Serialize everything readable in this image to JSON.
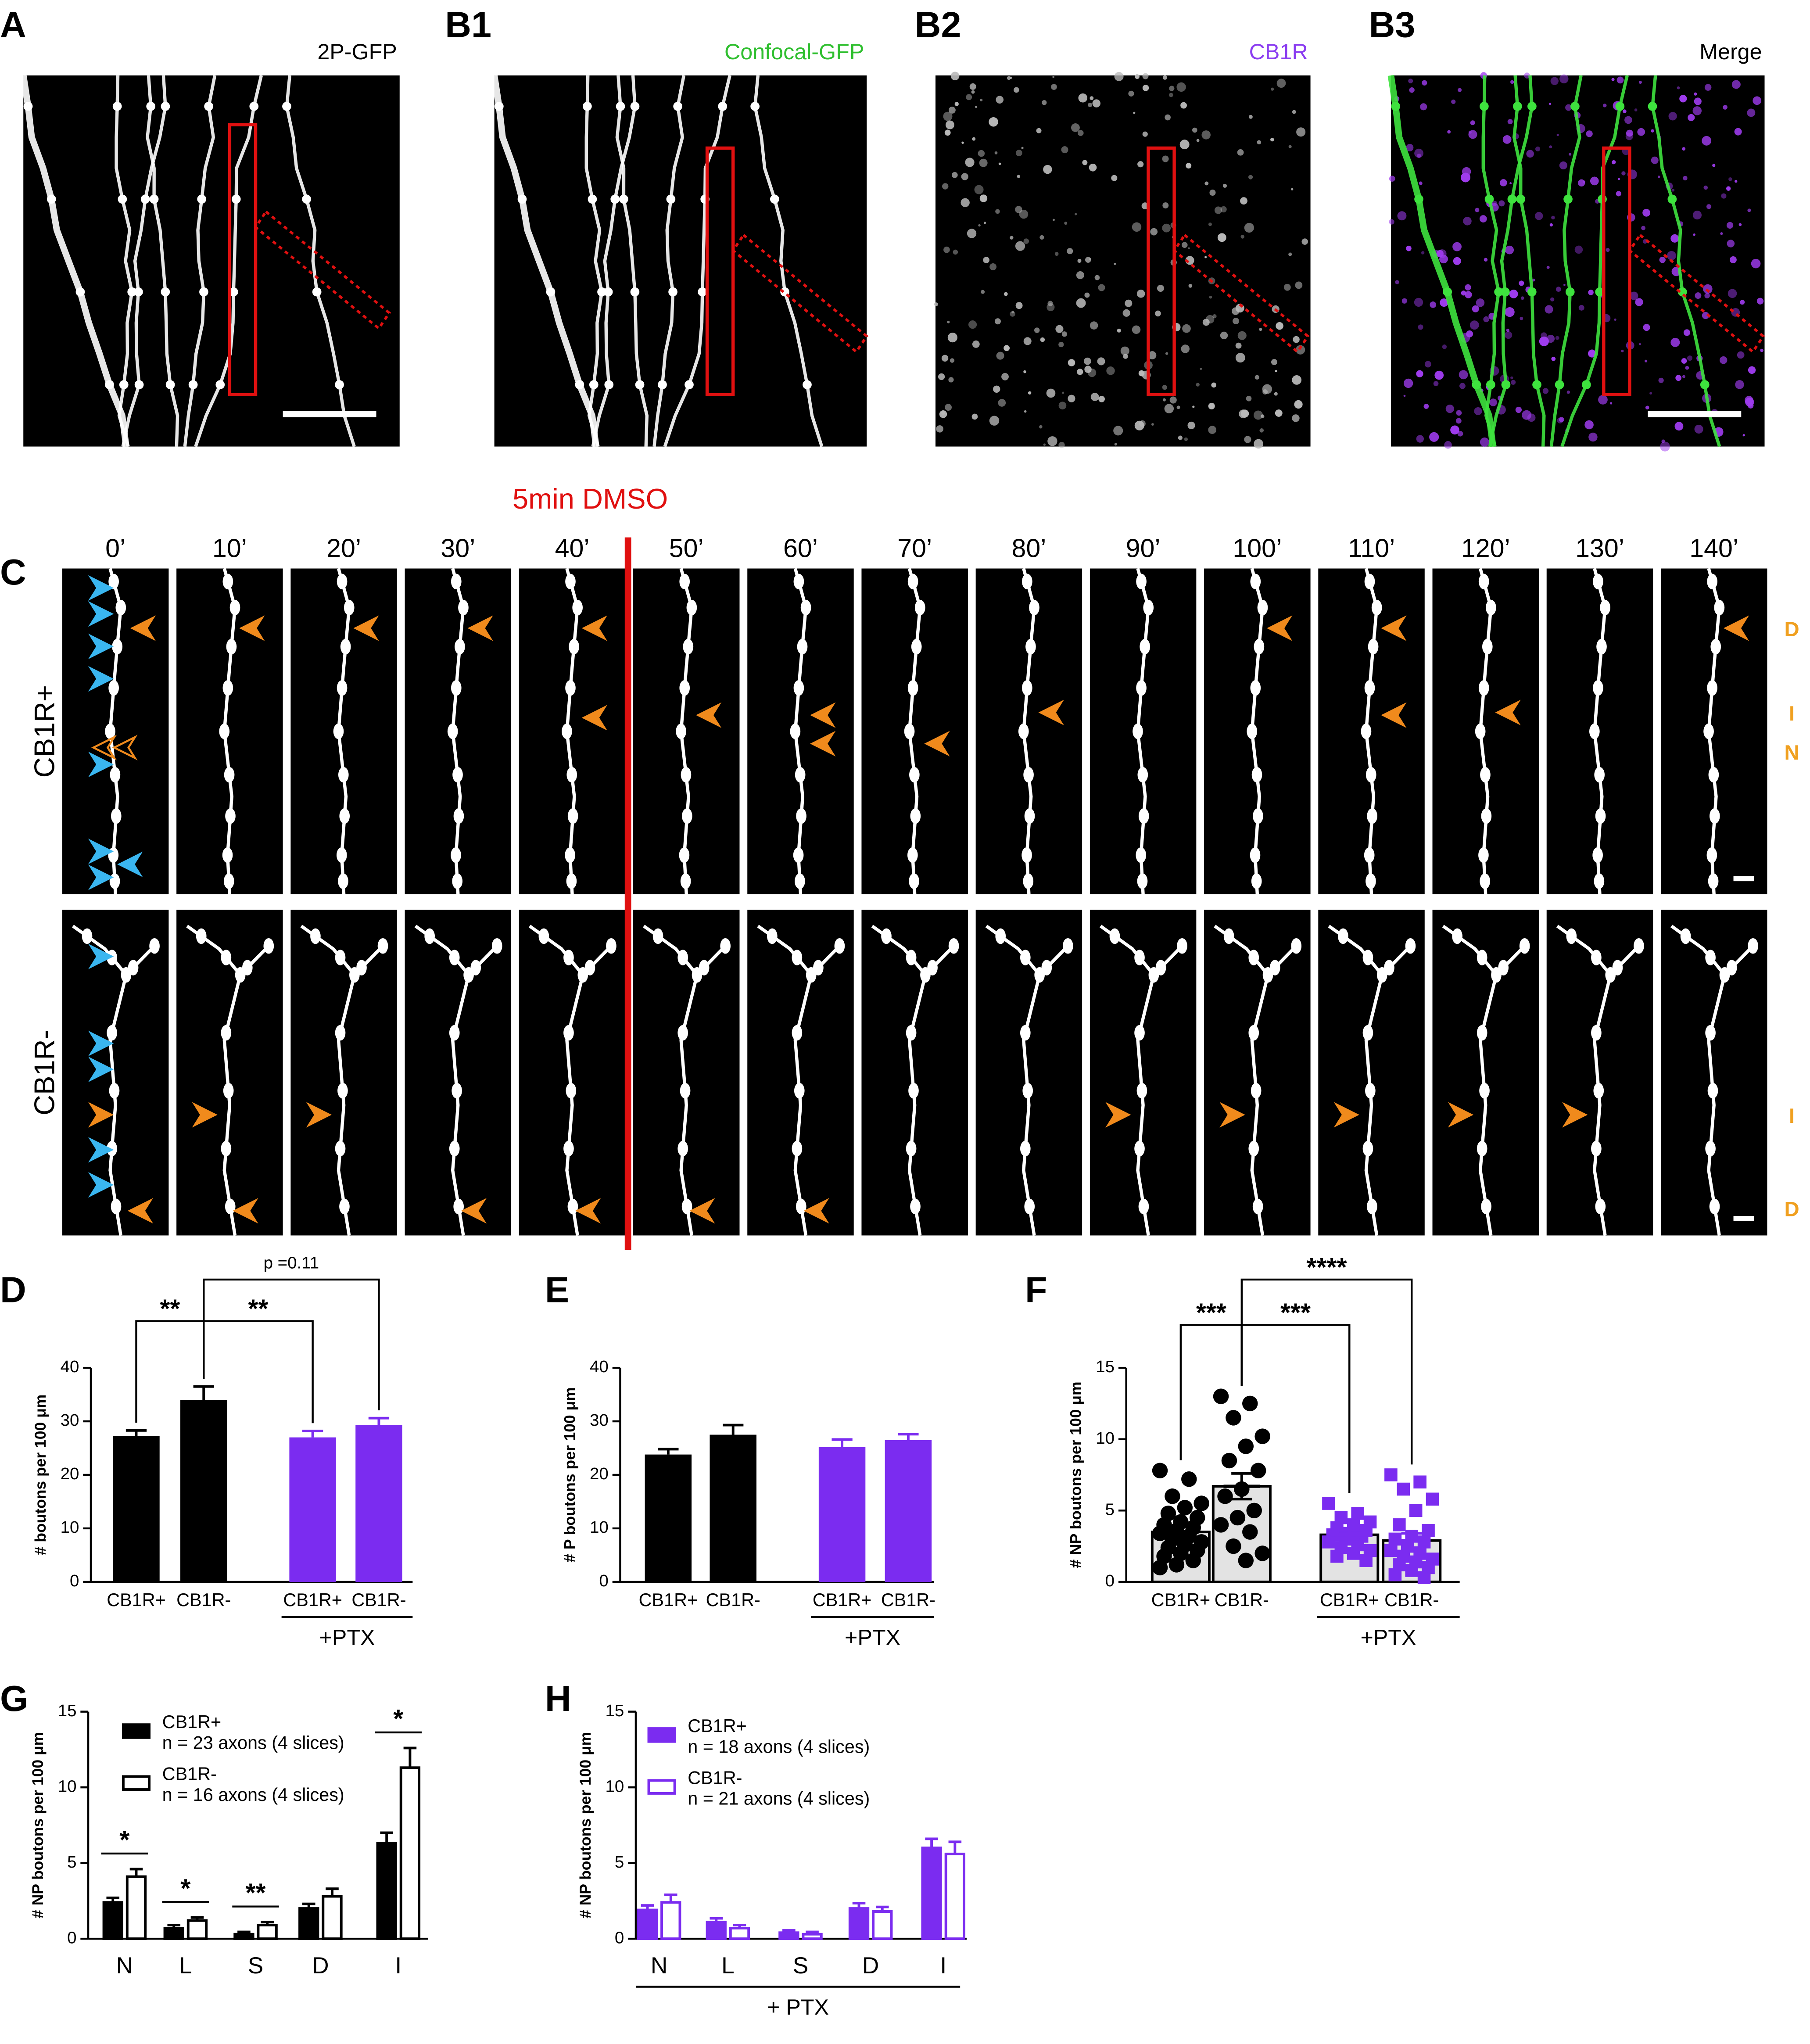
{
  "images": [
    {
      "label": "A",
      "caption": "2P-GFP"
    },
    {
      "label": "B1",
      "caption": "Confocal-GFP"
    },
    {
      "label": "B2",
      "caption": "CB1R"
    },
    {
      "label": "B3",
      "caption": "Merge"
    }
  ],
  "timelapse": {
    "label": "C",
    "treatment": "5min DMSO",
    "times": [
      "0’",
      "10’",
      "20’",
      "30’",
      "40’",
      "50’",
      "60’",
      "70’",
      "80’",
      "90’",
      "100’",
      "110’",
      "120’",
      "130’",
      "140’"
    ],
    "rows": [
      {
        "name": "CB1R+",
        "markers": [
          "D",
          "I",
          "N"
        ]
      },
      {
        "name": "CB1R-",
        "markers": [
          "I",
          "D"
        ]
      }
    ]
  },
  "chart_data": [
    {
      "type": "bar",
      "label": "D",
      "ylabel": "# boutons per 100 μm",
      "categories": [
        "CB1R+",
        "CB1R-",
        "CB1R+",
        "CB1R-"
      ],
      "group_label": "+PTX",
      "values": [
        27.3,
        34,
        27,
        29.3
      ],
      "errors": [
        1,
        2.5,
        1.2,
        1.3
      ],
      "colors": [
        "#000000",
        "#000000",
        "#7b2cf0",
        "#7b2cf0"
      ],
      "ylim": [
        0,
        40
      ],
      "yticks": [
        0,
        10,
        20,
        30,
        40
      ],
      "annotations": [
        "**",
        "**",
        "p =0.11"
      ]
    },
    {
      "type": "bar",
      "label": "E",
      "ylabel": "# P boutons per 100 μm",
      "categories": [
        "CB1R+",
        "CB1R-",
        "CB1R+",
        "CB1R-"
      ],
      "group_label": "+PTX",
      "values": [
        23.8,
        27.5,
        25.2,
        26.5
      ],
      "errors": [
        1,
        1.8,
        1.4,
        1.1
      ],
      "colors": [
        "#000000",
        "#000000",
        "#7b2cf0",
        "#7b2cf0"
      ],
      "ylim": [
        0,
        40
      ],
      "yticks": [
        0,
        10,
        20,
        30,
        40
      ]
    },
    {
      "type": "bar",
      "label": "F",
      "ylabel": "# NP boutons per 100 μm",
      "categories": [
        "CB1R+",
        "CB1R-",
        "CB1R+",
        "CB1R-"
      ],
      "group_label": "+PTX",
      "values": [
        3.5,
        6.7,
        3.3,
        2.9
      ],
      "errors": [
        0.4,
        0.9,
        0.3,
        0.5
      ],
      "colors": [
        "#000000",
        "#000000",
        "#7b2cf0",
        "#7b2cf0"
      ],
      "bar_fill": "#e3e3e3",
      "markers": [
        "circle",
        "circle",
        "square",
        "square"
      ],
      "points": [
        [
          7.8,
          7.2,
          6.0,
          5.5,
          5.2,
          4.8,
          4.5,
          4.2,
          4.0,
          3.8,
          3.6,
          3.4,
          3.2,
          3.0,
          2.8,
          2.6,
          2.4,
          2.2,
          2.0,
          1.8,
          1.5,
          1.2,
          1.0
        ],
        [
          13.0,
          12.5,
          11.5,
          10.2,
          9.5,
          8.5,
          7.8,
          6.5,
          6.0,
          5.0,
          4.5,
          4.0,
          3.5,
          2.5,
          2.0,
          1.5
        ],
        [
          5.5,
          4.8,
          4.5,
          4.2,
          4.0,
          3.8,
          3.6,
          3.4,
          3.3,
          3.2,
          3.0,
          2.8,
          2.6,
          2.4,
          2.2,
          2.0,
          1.8,
          1.5
        ],
        [
          7.5,
          7.0,
          6.5,
          5.8,
          5.0,
          4.0,
          3.6,
          3.2,
          3.0,
          2.8,
          2.5,
          2.2,
          2.0,
          1.8,
          1.6,
          1.4,
          1.2,
          1.0,
          0.8,
          0.5,
          0.3
        ]
      ],
      "ylim": [
        0,
        15
      ],
      "yticks": [
        0,
        5,
        10,
        15
      ],
      "annotations": [
        "***",
        "***",
        "****"
      ]
    },
    {
      "type": "grouped_bar",
      "label": "G",
      "ylabel": "# NP boutons per 100 μm",
      "categories": [
        "N",
        "L",
        "S",
        "D",
        "I"
      ],
      "series": [
        {
          "name": "CB1R+",
          "detail": "n = 23 axons (4 slices)",
          "color": "#000000",
          "filled": true,
          "values": [
            2.4,
            0.7,
            0.3,
            2.0,
            6.3
          ],
          "errors": [
            0.3,
            0.2,
            0.15,
            0.3,
            0.7
          ]
        },
        {
          "name": "CB1R-",
          "detail": "n = 16 axons (4 slices)",
          "color": "#000000",
          "filled": false,
          "values": [
            4.1,
            1.2,
            0.9,
            2.8,
            11.3
          ],
          "errors": [
            0.5,
            0.2,
            0.2,
            0.5,
            1.3
          ]
        }
      ],
      "ylim": [
        0,
        15
      ],
      "yticks": [
        0,
        5,
        10,
        15
      ],
      "annotations": [
        "*",
        "*",
        "**",
        null,
        "*"
      ]
    },
    {
      "type": "grouped_bar",
      "label": "H",
      "ylabel": "# NP boutons per 100 μm",
      "categories": [
        "N",
        "L",
        "S",
        "D",
        "I"
      ],
      "group_label": "+ PTX",
      "series": [
        {
          "name": "CB1R+",
          "detail": "n = 18 axons (4 slices)",
          "color": "#7b2cf0",
          "filled": true,
          "values": [
            1.9,
            1.1,
            0.4,
            2.0,
            6.0
          ],
          "errors": [
            0.3,
            0.25,
            0.15,
            0.35,
            0.6
          ]
        },
        {
          "name": "CB1R-",
          "detail": "n = 21 axons (4 slices)",
          "color": "#7b2cf0",
          "filled": false,
          "values": [
            2.4,
            0.7,
            0.3,
            1.8,
            5.6
          ],
          "errors": [
            0.5,
            0.2,
            0.15,
            0.3,
            0.8
          ]
        }
      ],
      "ylim": [
        0,
        15
      ],
      "yticks": [
        0,
        5,
        10,
        15
      ]
    }
  ]
}
